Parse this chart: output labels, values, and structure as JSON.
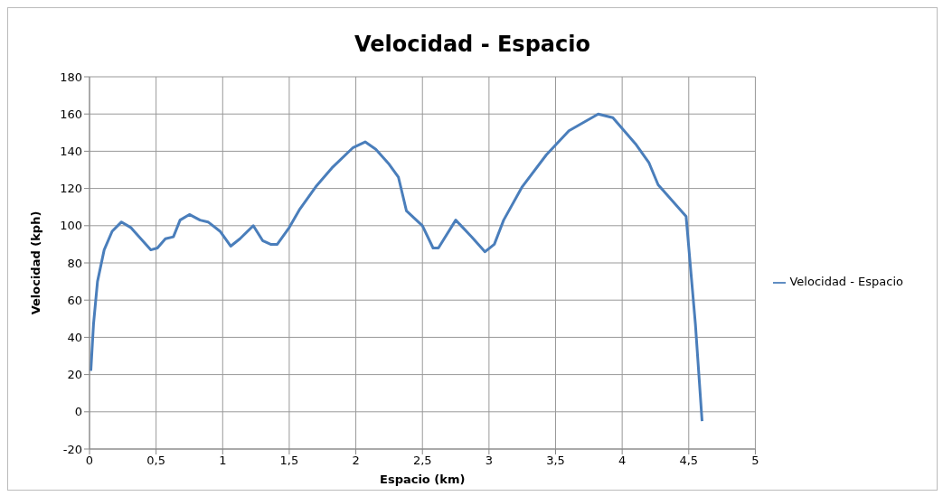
{
  "chart_data": {
    "type": "line",
    "title": "Velocidad - Espacio",
    "xlabel": "Espacio  (km)",
    "ylabel": "Velocidad  (kph)",
    "series": [
      {
        "name": "Velocidad - Espacio",
        "color": "#4a7ebb",
        "x": [
          0.01,
          0.03,
          0.06,
          0.11,
          0.17,
          0.24,
          0.31,
          0.46,
          0.51,
          0.57,
          0.63,
          0.68,
          0.75,
          0.83,
          0.89,
          0.98,
          1.06,
          1.13,
          1.23,
          1.3,
          1.36,
          1.41,
          1.5,
          1.58,
          1.7,
          1.82,
          1.98,
          2.07,
          2.15,
          2.25,
          2.32,
          2.38,
          2.5,
          2.58,
          2.62,
          2.75,
          2.87,
          2.97,
          3.04,
          3.11,
          3.25,
          3.43,
          3.6,
          3.82,
          3.93,
          4.1,
          4.2,
          4.27,
          4.48,
          4.55,
          4.6
        ],
        "values": [
          22,
          47,
          70,
          87,
          97,
          102,
          99,
          87,
          88,
          93,
          94,
          103,
          106,
          103,
          102,
          97,
          89,
          93,
          100,
          92,
          90,
          90,
          99,
          109,
          121,
          131,
          142,
          145,
          141,
          133,
          126,
          108,
          100,
          88,
          88,
          103,
          94,
          86,
          90,
          103,
          121,
          138,
          151,
          160,
          158,
          144,
          134,
          122,
          105,
          47,
          -5
        ]
      }
    ],
    "xlim": [
      0,
      5
    ],
    "xticks": [
      0,
      {
        "value": 0.5,
        "label": "0,5"
      },
      1,
      {
        "value": 1.5,
        "label": "1,5"
      },
      2,
      {
        "value": 2.5,
        "label": "2,5"
      },
      3,
      {
        "value": 3.5,
        "label": "3,5"
      },
      4,
      {
        "value": 4.5,
        "label": "4,5"
      },
      5
    ],
    "ylim": [
      -20,
      180
    ],
    "yticks": [
      -20,
      0,
      20,
      40,
      60,
      80,
      100,
      120,
      140,
      160,
      180
    ],
    "grid": true,
    "legend": "right",
    "marker": "none",
    "line_style": "solid"
  }
}
